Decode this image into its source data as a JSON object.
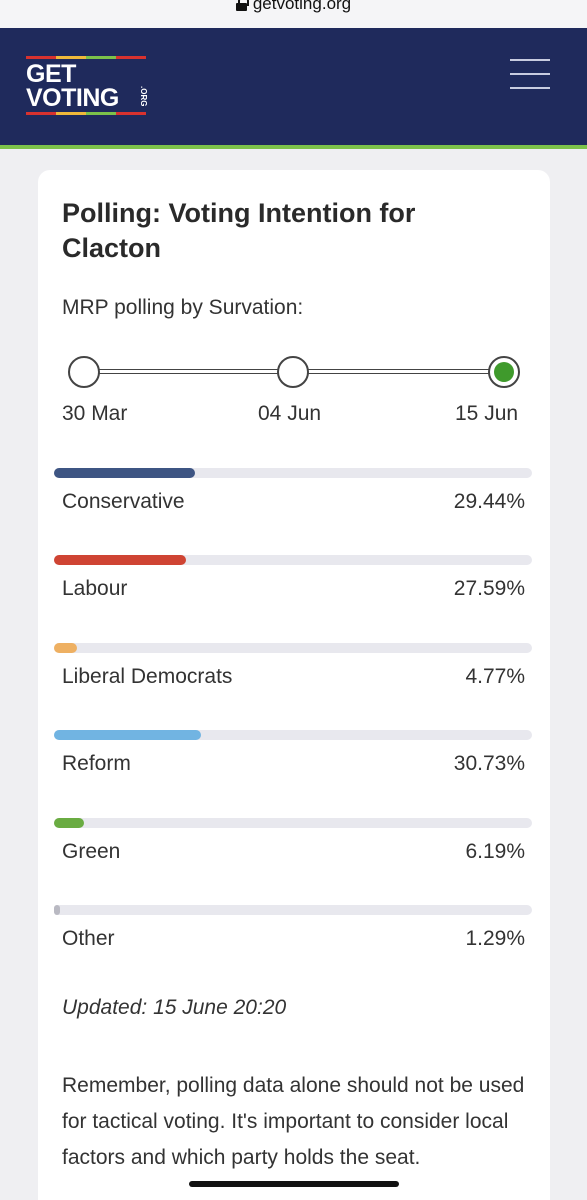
{
  "browser": {
    "url": "getvoting.org"
  },
  "header": {
    "logo_line1": "GET",
    "logo_line2": "VOTING",
    "logo_org": ".ORG"
  },
  "card": {
    "title": "Polling: Voting Intention for Clacton",
    "subtitle": "MRP polling by Survation:",
    "timeline": [
      {
        "label": "30 Mar",
        "active": false
      },
      {
        "label": "04 Jun",
        "active": false
      },
      {
        "label": "15 Jun",
        "active": true
      }
    ],
    "parties": [
      {
        "name": "Conservative",
        "pct_label": "29.44%",
        "value": 29.44,
        "color": "#3e5583"
      },
      {
        "name": "Labour",
        "pct_label": "27.59%",
        "value": 27.59,
        "color": "#cf4433"
      },
      {
        "name": "Liberal Democrats",
        "pct_label": "4.77%",
        "value": 4.77,
        "color": "#eeb062"
      },
      {
        "name": "Reform",
        "pct_label": "30.73%",
        "value": 30.73,
        "color": "#71b4e2"
      },
      {
        "name": "Green",
        "pct_label": "6.19%",
        "value": 6.19,
        "color": "#6aac42"
      },
      {
        "name": "Other",
        "pct_label": "1.29%",
        "value": 1.29,
        "color": "#b9b9c2"
      }
    ],
    "updated": "Updated: 15 June 20:20",
    "note": "Remember, polling data alone should not be used for tactical voting. It's important to consider local factors and which party holds the seat."
  }
}
